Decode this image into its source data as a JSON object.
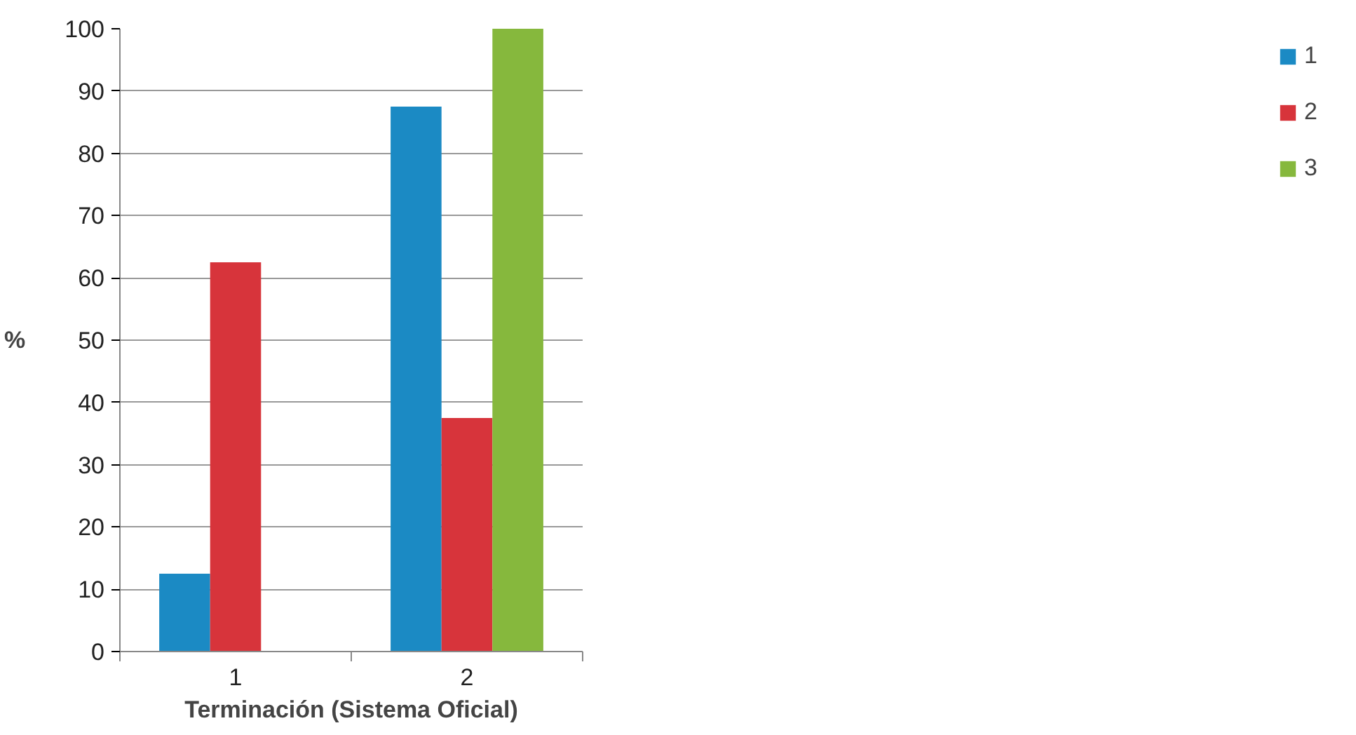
{
  "chart_data": {
    "type": "bar",
    "xlabel": "Terminación (Sistema Oficial)",
    "ylabel": "%",
    "categories": [
      "1",
      "2"
    ],
    "series": [
      {
        "name": "1",
        "color": "#1b8ac4",
        "values": [
          12.5,
          87.5
        ]
      },
      {
        "name": "2",
        "color": "#d7343b",
        "values": [
          62.5,
          37.5
        ]
      },
      {
        "name": "3",
        "color": "#86b83d",
        "values": [
          null,
          100
        ]
      }
    ],
    "ylim": [
      0,
      100
    ],
    "yticks": [
      0,
      10,
      20,
      30,
      40,
      50,
      60,
      70,
      80,
      90,
      100
    ],
    "grid": "y",
    "legend": "right"
  }
}
